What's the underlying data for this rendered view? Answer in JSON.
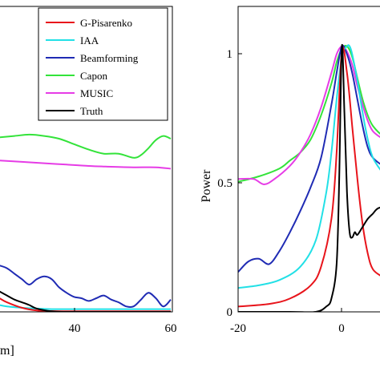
{
  "colors": {
    "G-Pisarenko": "#e8141b",
    "IAA": "#22e0e6",
    "Beamforming": "#1f2bb4",
    "Capon": "#33e33a",
    "MUSIC": "#e63ce6",
    "Truth": "#000000"
  },
  "chart_data": [
    {
      "type": "line",
      "xlabel": "m]",
      "ylabel": "",
      "xlim": [
        14,
        60
      ],
      "ylim": [
        0,
        1.12
      ],
      "x_ticks": [
        "40",
        "60"
      ],
      "y_ticks": [],
      "grid": false,
      "legend": {
        "position": "top-right",
        "entries": [
          "G-Pisarenko",
          "IAA",
          "Beamforming",
          "Capon",
          "MUSIC",
          "Truth"
        ]
      },
      "series": [
        {
          "name": "G-Pisarenko",
          "x": [
            14,
            16,
            20,
            24,
            28,
            32,
            40,
            50,
            60
          ],
          "y": [
            0.05,
            0.035,
            0.015,
            0.005,
            0.003,
            0.002,
            0.002,
            0.002,
            0.002
          ]
        },
        {
          "name": "IAA",
          "x": [
            14,
            16,
            20,
            24,
            28,
            32,
            40,
            50,
            60
          ],
          "y": [
            0.025,
            0.02,
            0.015,
            0.012,
            0.01,
            0.01,
            0.01,
            0.01,
            0.01
          ]
        },
        {
          "name": "Beamforming",
          "x": [
            14,
            16,
            18,
            20,
            22,
            24,
            26,
            28,
            30,
            32,
            34,
            36,
            38,
            40,
            42,
            44,
            46,
            48,
            50,
            52,
            54,
            56,
            58,
            60
          ],
          "y": [
            0.17,
            0.16,
            0.14,
            0.12,
            0.1,
            0.12,
            0.13,
            0.12,
            0.09,
            0.07,
            0.055,
            0.05,
            0.04,
            0.05,
            0.06,
            0.045,
            0.035,
            0.02,
            0.02,
            0.045,
            0.07,
            0.05,
            0.02,
            0.045
          ]
        },
        {
          "name": "Capon",
          "x": [
            14,
            18,
            22,
            26,
            30,
            34,
            38,
            42,
            46,
            50,
            52,
            54,
            56,
            58,
            60
          ],
          "y": [
            0.64,
            0.645,
            0.65,
            0.645,
            0.635,
            0.615,
            0.595,
            0.58,
            0.58,
            0.565,
            0.575,
            0.6,
            0.63,
            0.645,
            0.635
          ]
        },
        {
          "name": "MUSIC",
          "x": [
            14,
            20,
            26,
            32,
            38,
            44,
            50,
            56,
            60
          ],
          "y": [
            0.555,
            0.55,
            0.545,
            0.54,
            0.535,
            0.532,
            0.53,
            0.53,
            0.525
          ]
        },
        {
          "name": "Truth",
          "x": [
            14,
            16,
            18,
            20,
            22,
            24,
            28,
            32,
            40,
            50,
            60
          ],
          "y": [
            0.075,
            0.06,
            0.045,
            0.035,
            0.025,
            0.012,
            0.002,
            0.0,
            0.0,
            0.0,
            0.0
          ]
        }
      ]
    },
    {
      "type": "line",
      "xlabel": "",
      "ylabel": "Power",
      "xlim": [
        -20,
        9
      ],
      "ylim": [
        0,
        1.15
      ],
      "x_ticks": [
        "-20",
        "0"
      ],
      "y_ticks": [
        "0",
        "0.5",
        "1"
      ],
      "grid": false,
      "series": [
        {
          "name": "G-Pisarenko",
          "x": [
            -20,
            -14,
            -10,
            -6,
            -4,
            -2,
            -1,
            0,
            1,
            2,
            3,
            4,
            5,
            6,
            8,
            9
          ],
          "y": [
            0.02,
            0.03,
            0.05,
            0.1,
            0.17,
            0.35,
            0.6,
            0.98,
            0.9,
            0.7,
            0.5,
            0.33,
            0.22,
            0.16,
            0.13,
            0.12
          ]
        },
        {
          "name": "IAA",
          "x": [
            -20,
            -16,
            -12,
            -8,
            -5,
            -3,
            -2,
            -1,
            0,
            1,
            1.5,
            2,
            3,
            4,
            5,
            6,
            8,
            9
          ],
          "y": [
            0.09,
            0.1,
            0.12,
            0.17,
            0.27,
            0.45,
            0.6,
            0.8,
            0.96,
            1.0,
            1.0,
            0.97,
            0.87,
            0.75,
            0.65,
            0.58,
            0.52,
            0.5
          ]
        },
        {
          "name": "Beamforming",
          "x": [
            -20,
            -18,
            -16,
            -14,
            -12,
            -10,
            -8,
            -6,
            -4,
            -2,
            -1,
            0,
            1,
            2,
            3,
            4,
            5,
            6,
            8,
            9
          ],
          "y": [
            0.15,
            0.19,
            0.2,
            0.18,
            0.23,
            0.3,
            0.38,
            0.47,
            0.58,
            0.78,
            0.9,
            1.0,
            0.97,
            0.9,
            0.8,
            0.7,
            0.62,
            0.58,
            0.55,
            0.55
          ]
        },
        {
          "name": "Capon",
          "x": [
            -20,
            -16,
            -12,
            -10,
            -8,
            -6,
            -4,
            -2,
            -1,
            0,
            1,
            2,
            3,
            4,
            5,
            6,
            8,
            9
          ],
          "y": [
            0.49,
            0.51,
            0.54,
            0.57,
            0.6,
            0.65,
            0.74,
            0.86,
            0.94,
            0.99,
            1.0,
            0.96,
            0.88,
            0.8,
            0.74,
            0.7,
            0.66,
            0.65
          ]
        },
        {
          "name": "MUSIC",
          "x": [
            -20,
            -17,
            -15,
            -13,
            -10,
            -8,
            -6,
            -4,
            -2,
            -1,
            0,
            1,
            2,
            3,
            4,
            5,
            6,
            8,
            9
          ],
          "y": [
            0.5,
            0.5,
            0.48,
            0.5,
            0.55,
            0.6,
            0.67,
            0.77,
            0.9,
            0.97,
            1.0,
            0.98,
            0.93,
            0.85,
            0.78,
            0.72,
            0.68,
            0.65,
            0.64
          ]
        },
        {
          "name": "Truth",
          "x": [
            -20,
            -10,
            -5,
            -3,
            -2,
            -1,
            -0.5,
            0,
            0.5,
            1,
            1.5,
            2,
            2.5,
            3,
            4,
            5,
            6,
            7,
            9
          ],
          "y": [
            0.0,
            0.0,
            0.0,
            0.02,
            0.05,
            0.18,
            0.5,
            1.0,
            0.75,
            0.45,
            0.3,
            0.28,
            0.3,
            0.29,
            0.32,
            0.35,
            0.37,
            0.39,
            0.4
          ]
        }
      ]
    }
  ]
}
